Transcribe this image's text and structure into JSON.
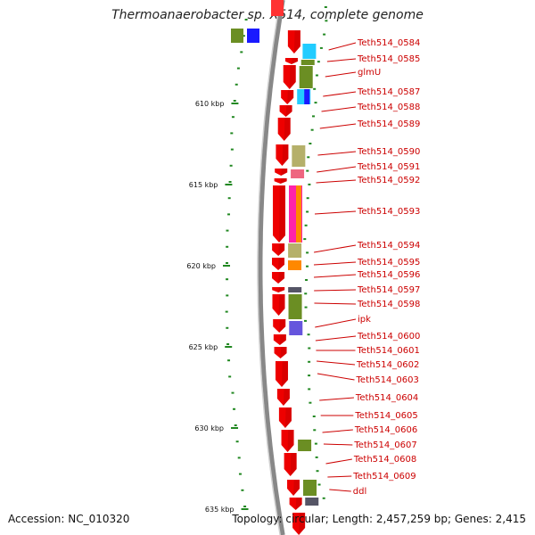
{
  "title": "Thermoanaerobacter sp. X514, complete genome",
  "accession": "Accession: NC_010320",
  "info": "Topology: circular; Length: 2,457,259 bp; Genes: 2,415",
  "ticks": [
    "610 kbp",
    "615 kbp",
    "620 kbp",
    "625 kbp",
    "630 kbp",
    "635 kbp"
  ],
  "genes": [
    "Teth514_0584",
    "Teth514_0585",
    "glmU",
    "Teth514_0587",
    "Teth514_0588",
    "Teth514_0589",
    "Teth514_0590",
    "Teth514_0591",
    "Teth514_0592",
    "Teth514_0593",
    "Teth514_0594",
    "Teth514_0595",
    "Teth514_0596",
    "Teth514_0597",
    "Teth514_0598",
    "ipk",
    "Teth514_0600",
    "Teth514_0601",
    "Teth514_0602",
    "Teth514_0603",
    "Teth514_0604",
    "Teth514_0605",
    "Teth514_0606",
    "Teth514_0607",
    "Teth514_0608",
    "Teth514_0609",
    "ddl"
  ],
  "colors": {
    "gene": "#ee0000",
    "label": "#cc0000",
    "tick": "#228822",
    "backbone": "#888888",
    "cog_olive": "#6b8e23",
    "cog_blue": "#1a1aff",
    "cog_cyan": "#22ccff",
    "cog_khaki": "#b5b06a",
    "cog_pink": "#ee6680",
    "cog_magenta": "#ff22aa",
    "cog_orange": "#ff8800",
    "cog_gray": "#555566",
    "cog_purple": "#6655dd"
  }
}
